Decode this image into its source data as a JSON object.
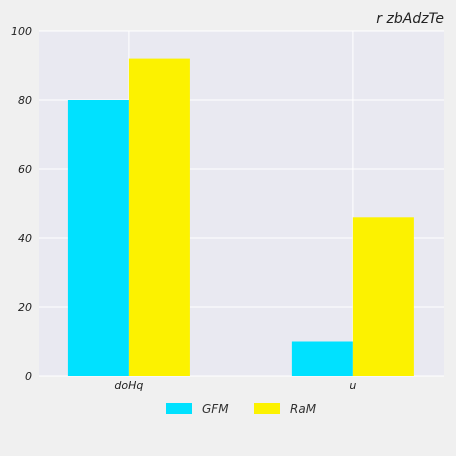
{
  "chart_data": {
    "type": "bar",
    "title": "r zbAdzTe",
    "xlabel": "",
    "ylabel": "",
    "categories": [
      "doHq",
      "u"
    ],
    "series": [
      {
        "name": "GFM",
        "values": [
          80,
          10
        ],
        "color": "#00e1ff"
      },
      {
        "name": "RaM",
        "values": [
          92,
          46
        ],
        "color": "#fcf200"
      }
    ],
    "ylim": [
      0,
      100
    ],
    "yticks": [
      0,
      20,
      40,
      60,
      80,
      100
    ],
    "grid": true,
    "legend_position": "bottom-center",
    "plot_background": "#e9e9f1"
  }
}
